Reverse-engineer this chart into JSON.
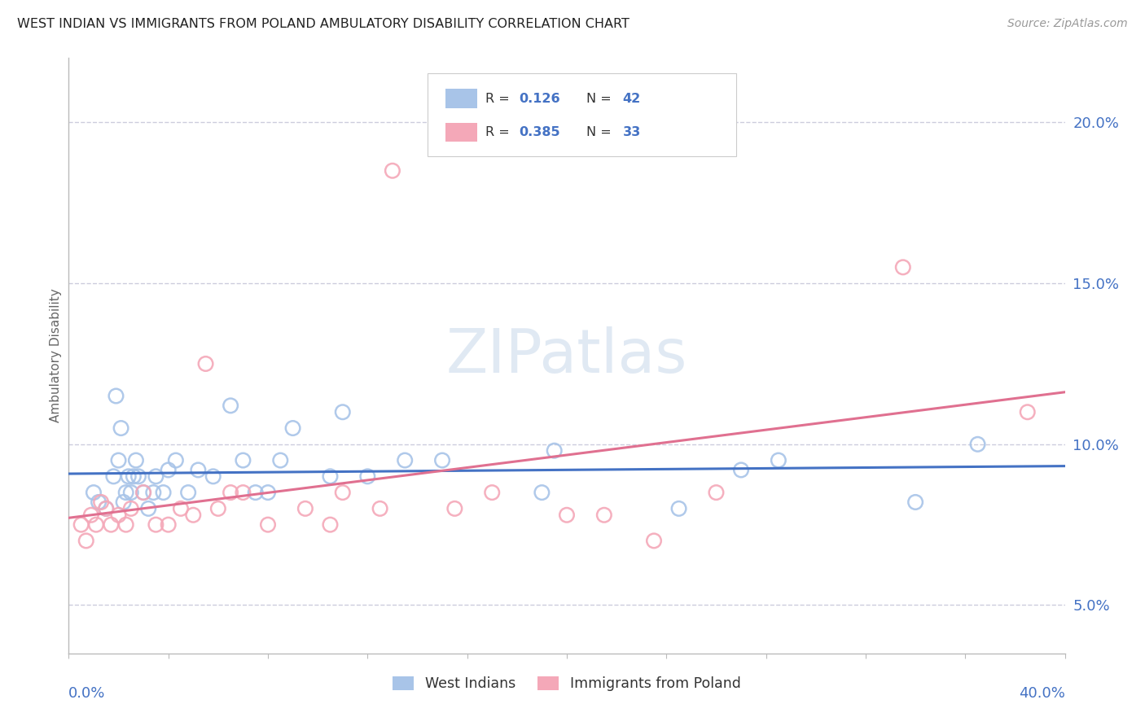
{
  "title": "WEST INDIAN VS IMMIGRANTS FROM POLAND AMBULATORY DISABILITY CORRELATION CHART",
  "source": "Source: ZipAtlas.com",
  "ylabel": "Ambulatory Disability",
  "xlim": [
    0.0,
    40.0
  ],
  "ylim": [
    3.5,
    22.0
  ],
  "yticks": [
    5.0,
    10.0,
    15.0,
    20.0
  ],
  "west_indian_R": "0.126",
  "west_indian_N": "42",
  "poland_R": "0.385",
  "poland_N": "33",
  "west_indian_color": "#a8c4e8",
  "poland_color": "#f4a8b8",
  "trend_blue": "#4472c4",
  "trend_pink": "#e07090",
  "background": "#ffffff",
  "grid_color": "#ccccdd",
  "watermark": "ZIPatlas",
  "west_indian_x": [
    1.0,
    1.2,
    1.5,
    1.8,
    1.9,
    2.0,
    2.1,
    2.2,
    2.3,
    2.4,
    2.5,
    2.6,
    2.7,
    2.8,
    3.0,
    3.2,
    3.4,
    3.5,
    3.8,
    4.0,
    4.3,
    4.8,
    5.2,
    5.8,
    6.5,
    7.0,
    7.5,
    8.0,
    8.5,
    9.0,
    10.5,
    11.0,
    12.0,
    13.5,
    15.0,
    19.0,
    19.5,
    24.5,
    27.0,
    28.5,
    34.0,
    36.5
  ],
  "west_indian_y": [
    8.5,
    8.2,
    8.0,
    9.0,
    11.5,
    9.5,
    10.5,
    8.2,
    8.5,
    9.0,
    8.5,
    9.0,
    9.5,
    9.0,
    8.5,
    8.0,
    8.5,
    9.0,
    8.5,
    9.2,
    9.5,
    8.5,
    9.2,
    9.0,
    11.2,
    9.5,
    8.5,
    8.5,
    9.5,
    10.5,
    9.0,
    11.0,
    9.0,
    9.5,
    9.5,
    8.5,
    9.8,
    8.0,
    9.2,
    9.5,
    8.2,
    10.0
  ],
  "poland_x": [
    0.5,
    0.7,
    0.9,
    1.1,
    1.3,
    1.5,
    1.7,
    2.0,
    2.3,
    2.5,
    3.0,
    3.5,
    4.0,
    4.5,
    5.0,
    5.5,
    6.0,
    6.5,
    7.0,
    8.0,
    9.5,
    10.5,
    11.0,
    12.5,
    13.0,
    15.5,
    17.0,
    20.0,
    21.5,
    23.5,
    26.0,
    33.5,
    38.5
  ],
  "poland_y": [
    7.5,
    7.0,
    7.8,
    7.5,
    8.2,
    8.0,
    7.5,
    7.8,
    7.5,
    8.0,
    8.5,
    7.5,
    7.5,
    8.0,
    7.8,
    12.5,
    8.0,
    8.5,
    8.5,
    7.5,
    8.0,
    7.5,
    8.5,
    8.0,
    18.5,
    8.0,
    8.5,
    7.8,
    7.8,
    7.0,
    8.5,
    15.5,
    11.0
  ]
}
